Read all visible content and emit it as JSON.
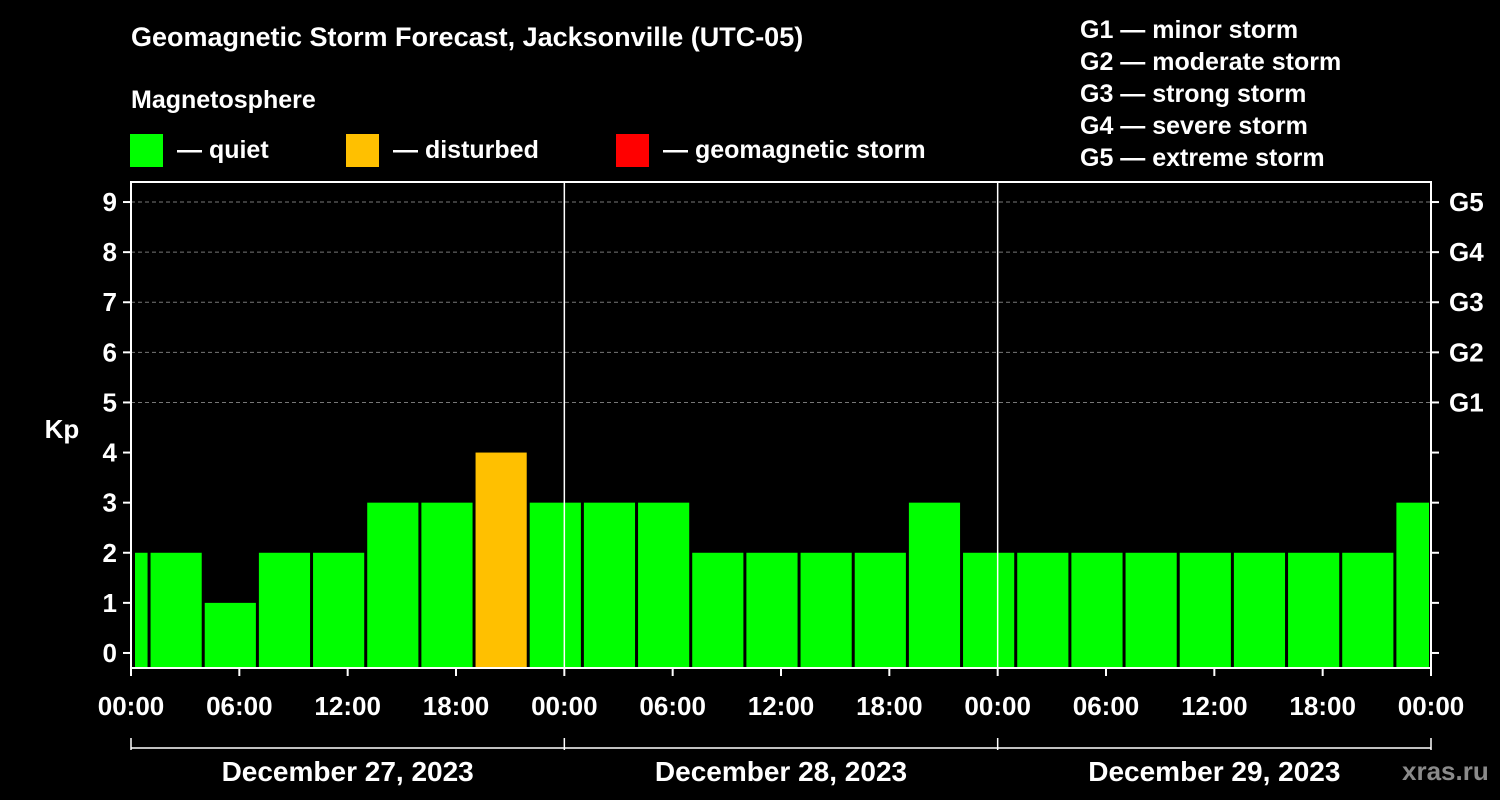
{
  "title": "Geomagnetic Storm Forecast, Jacksonville (UTC-05)",
  "subtitle": "Magnetosphere",
  "legend": [
    {
      "label": "— quiet",
      "color": "#00ff00"
    },
    {
      "label": "— disturbed",
      "color": "#ffc000"
    },
    {
      "label": "— geomagnetic storm",
      "color": "#ff0000"
    }
  ],
  "storm_scale": [
    "G1 — minor storm",
    "G2 — moderate storm",
    "G3 — strong storm",
    "G4 — severe storm",
    "G5 — extreme storm"
  ],
  "watermark": "xras.ru",
  "chart_data": {
    "type": "bar",
    "ylabel": "Kp",
    "ylim": [
      -0.3,
      9.4
    ],
    "yticks": [
      0,
      1,
      2,
      3,
      4,
      5,
      6,
      7,
      8,
      9
    ],
    "right_axis_labels": [
      {
        "kp": 5,
        "label": "G1"
      },
      {
        "kp": 6,
        "label": "G2"
      },
      {
        "kp": 7,
        "label": "G3"
      },
      {
        "kp": 8,
        "label": "G4"
      },
      {
        "kp": 9,
        "label": "G5"
      }
    ],
    "x_range_hours": [
      0,
      72
    ],
    "x_tick_labels": [
      "00:00",
      "06:00",
      "12:00",
      "18:00",
      "00:00",
      "06:00",
      "12:00",
      "18:00",
      "00:00",
      "06:00",
      "12:00",
      "18:00",
      "00:00"
    ],
    "x_tick_hours": [
      0,
      6,
      12,
      18,
      24,
      30,
      36,
      42,
      48,
      54,
      60,
      66,
      72
    ],
    "day_separators_hours": [
      24,
      48
    ],
    "dates": [
      "December 27, 2023",
      "December 28, 2023",
      "December 29, 2023"
    ],
    "bars": [
      {
        "start": 0,
        "end": 1,
        "kp": 2,
        "color": "#00ff00"
      },
      {
        "start": 1,
        "end": 4,
        "kp": 2,
        "color": "#00ff00"
      },
      {
        "start": 4,
        "end": 7,
        "kp": 1,
        "color": "#00ff00"
      },
      {
        "start": 7,
        "end": 10,
        "kp": 2,
        "color": "#00ff00"
      },
      {
        "start": 10,
        "end": 13,
        "kp": 2,
        "color": "#00ff00"
      },
      {
        "start": 13,
        "end": 16,
        "kp": 3,
        "color": "#00ff00"
      },
      {
        "start": 16,
        "end": 19,
        "kp": 3,
        "color": "#00ff00"
      },
      {
        "start": 19,
        "end": 22,
        "kp": 4,
        "color": "#ffc000"
      },
      {
        "start": 22,
        "end": 25,
        "kp": 3,
        "color": "#00ff00"
      },
      {
        "start": 25,
        "end": 28,
        "kp": 3,
        "color": "#00ff00"
      },
      {
        "start": 28,
        "end": 31,
        "kp": 3,
        "color": "#00ff00"
      },
      {
        "start": 31,
        "end": 34,
        "kp": 2,
        "color": "#00ff00"
      },
      {
        "start": 34,
        "end": 37,
        "kp": 2,
        "color": "#00ff00"
      },
      {
        "start": 37,
        "end": 40,
        "kp": 2,
        "color": "#00ff00"
      },
      {
        "start": 40,
        "end": 43,
        "kp": 2,
        "color": "#00ff00"
      },
      {
        "start": 43,
        "end": 46,
        "kp": 3,
        "color": "#00ff00"
      },
      {
        "start": 46,
        "end": 49,
        "kp": 2,
        "color": "#00ff00"
      },
      {
        "start": 49,
        "end": 52,
        "kp": 2,
        "color": "#00ff00"
      },
      {
        "start": 52,
        "end": 55,
        "kp": 2,
        "color": "#00ff00"
      },
      {
        "start": 55,
        "end": 58,
        "kp": 2,
        "color": "#00ff00"
      },
      {
        "start": 58,
        "end": 61,
        "kp": 2,
        "color": "#00ff00"
      },
      {
        "start": 61,
        "end": 64,
        "kp": 2,
        "color": "#00ff00"
      },
      {
        "start": 64,
        "end": 67,
        "kp": 2,
        "color": "#00ff00"
      },
      {
        "start": 67,
        "end": 70,
        "kp": 2,
        "color": "#00ff00"
      },
      {
        "start": 70,
        "end": 72,
        "kp": 3,
        "color": "#00ff00"
      }
    ]
  }
}
